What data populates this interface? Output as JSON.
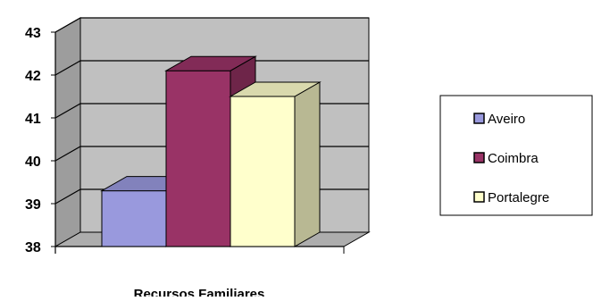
{
  "chart_data": {
    "type": "bar",
    "categories": [
      "Recursos Familiares"
    ],
    "series": [
      {
        "name": "Aveiro",
        "values": [
          39.3
        ],
        "color": "#9999dd"
      },
      {
        "name": "Coimbra",
        "values": [
          42.1
        ],
        "color": "#993366"
      },
      {
        "name": "Portalegre",
        "values": [
          41.5
        ],
        "color": "#ffffcc"
      }
    ],
    "xlabel": "Recursos Familiares",
    "ylabel": "",
    "ylim": [
      38,
      43
    ],
    "yticks": [
      38,
      39,
      40,
      41,
      42,
      43
    ],
    "grid": true,
    "three_d": true,
    "wall_color": "#c0c0c0",
    "legend_position": "right"
  }
}
